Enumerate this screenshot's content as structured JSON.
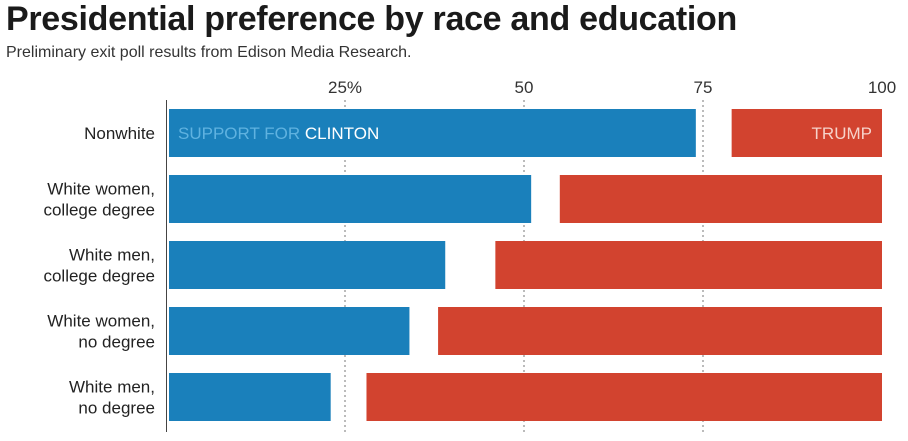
{
  "header": {
    "title": "Presidential preference by race and education",
    "subtitle": "Preliminary exit poll results from Edison Media Research."
  },
  "colors": {
    "clinton": "#1a80bb",
    "trump": "#d2432f",
    "clinton_label_light": "#5fb2e0",
    "trump_label_light": "#f6d2ca",
    "gridline": "#777777"
  },
  "chart_data": {
    "type": "bar",
    "orientation": "horizontal",
    "title": "Presidential preference by race and education",
    "subtitle": "Preliminary exit poll results from Edison Media Research.",
    "xlim": [
      0,
      100
    ],
    "ticks": [
      {
        "value": 25,
        "label": "25%"
      },
      {
        "value": 50,
        "label": "50"
      },
      {
        "value": 75,
        "label": "75"
      },
      {
        "value": 100,
        "label": "100"
      }
    ],
    "categories": [
      [
        "Nonwhite"
      ],
      [
        "White women,",
        "college degree"
      ],
      [
        "White men,",
        "college degree"
      ],
      [
        "White women,",
        "no degree"
      ],
      [
        "White men,",
        "no degree"
      ]
    ],
    "series": [
      {
        "name": "CLINTON",
        "values": [
          74,
          51,
          39,
          34,
          23
        ]
      },
      {
        "name": "TRUMP",
        "values": [
          21,
          45,
          54,
          62,
          72
        ]
      }
    ],
    "annotations": {
      "clinton_prefix": "SUPPORT FOR ",
      "clinton_name": "CLINTON",
      "trump_name": "TRUMP"
    },
    "grid": true,
    "legend": "inline"
  }
}
